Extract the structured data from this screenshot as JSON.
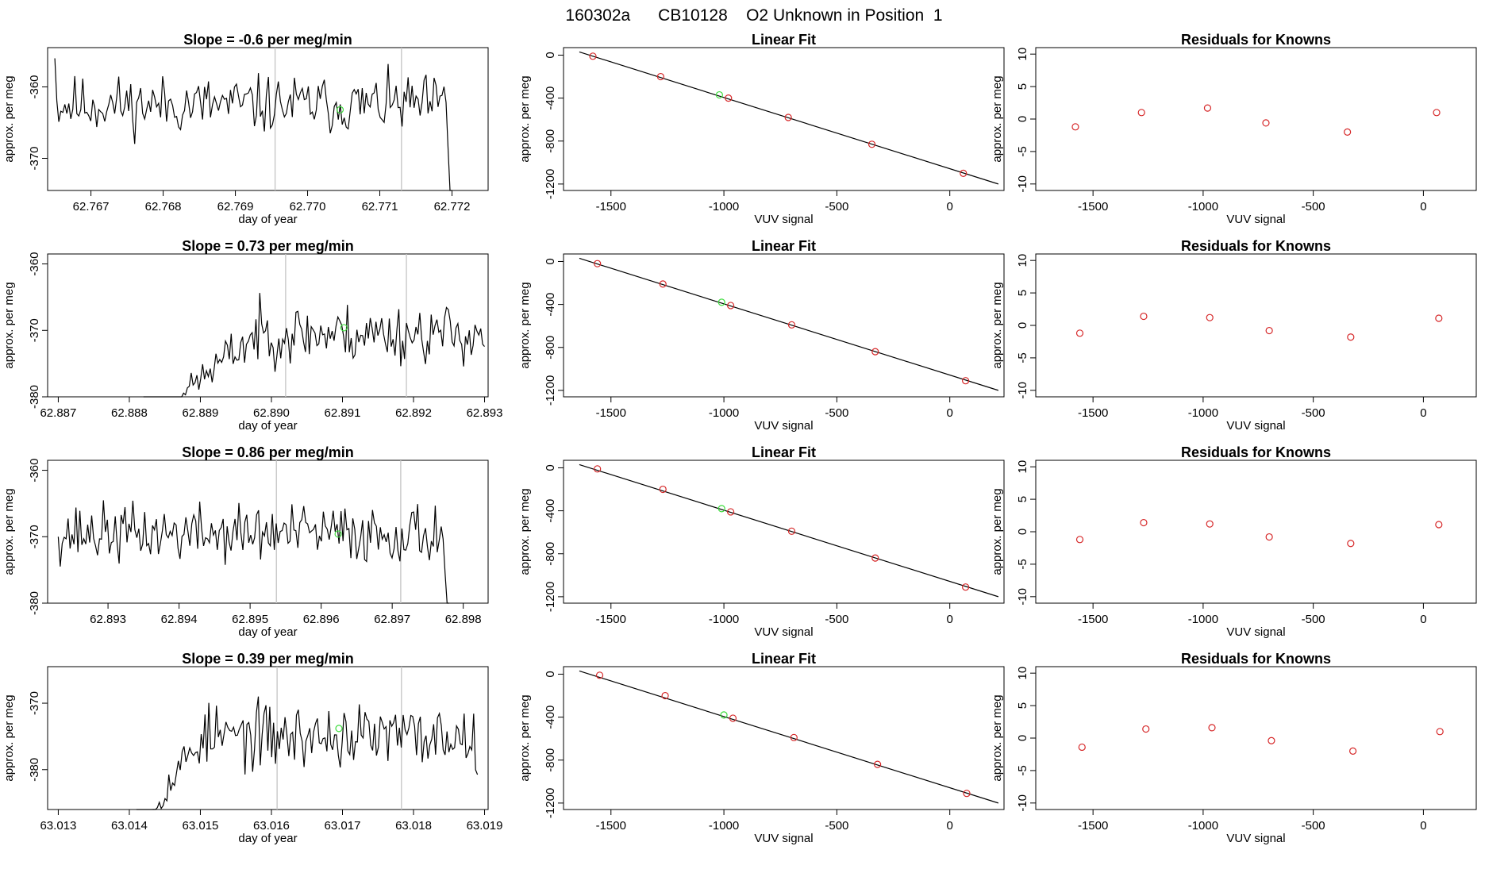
{
  "figure_title": "160302a      CB10128    O2 Unknown in Position  1",
  "colors": {
    "trace": "#000000",
    "known_point": "#d62728",
    "unknown_point": "#3ddc3d",
    "cycle_marker": "#c8c8c8",
    "fit_line": "#000000"
  },
  "labels": {
    "time_xlabel": "day of year",
    "time_ylabel": "approx. per meg",
    "fit_title": "Linear Fit",
    "fit_xlabel": "VUV signal",
    "fit_ylabel": "approx. per meg",
    "resid_title": "Residuals for Knowns",
    "resid_xlabel": "VUV signal",
    "resid_ylabel": "approx. per meg"
  },
  "chart_data": [
    {
      "type": "line",
      "row": 1,
      "panel": "time-series",
      "title": "Slope =  -0.6  per meg/min",
      "xlabel": "day of year",
      "ylabel": "approx. per meg",
      "xlim": [
        62.7664,
        62.7725
      ],
      "ylim": [
        -374.5,
        -354.5
      ],
      "xticks": [
        "62.767",
        "62.768",
        "62.769",
        "62.770",
        "62.771",
        "62.772"
      ],
      "yticks": [
        "-360",
        "-370"
      ],
      "trace": {
        "start": 62.7665,
        "end": 62.772,
        "n": 200,
        "base": -362.5,
        "amp": 2.0,
        "seed": 11,
        "start_value": -356.0,
        "end_drop_to": -376.0
      },
      "cycle_markers": [
        62.76955,
        62.7713
      ],
      "unknown_point": {
        "x": 62.77045,
        "y": -363.2
      }
    },
    {
      "type": "scatter",
      "row": 1,
      "panel": "linear-fit",
      "title": "Linear Fit",
      "xlabel": "VUV signal",
      "ylabel": "approx. per meg",
      "xlim": [
        -1710,
        240
      ],
      "ylim": [
        -1260,
        70
      ],
      "xticks": [
        "-1500",
        "-1000",
        "-500",
        "0"
      ],
      "yticks": [
        "0",
        "-400",
        "-800",
        "-1200"
      ],
      "fit_line": {
        "x": [
          -1640,
          215
        ],
        "y": [
          30,
          -1200
        ]
      },
      "knowns": [
        {
          "x": -1580,
          "y": -10
        },
        {
          "x": -1280,
          "y": -200
        },
        {
          "x": -980,
          "y": -400
        },
        {
          "x": -715,
          "y": -580
        },
        {
          "x": -345,
          "y": -830
        },
        {
          "x": 60,
          "y": -1100
        }
      ],
      "unknown": {
        "x": -1020,
        "y": -370
      }
    },
    {
      "type": "scatter",
      "row": 1,
      "panel": "residuals",
      "title": "Residuals for Knowns",
      "xlabel": "VUV signal",
      "ylabel": "approx. per meg",
      "xlim": [
        -1760,
        240
      ],
      "ylim": [
        -11,
        11
      ],
      "xticks": [
        "-1500",
        "-1000",
        "-500",
        "0"
      ],
      "yticks": [
        "10",
        "5",
        "0",
        "-5",
        "-10"
      ],
      "points": [
        {
          "x": -1580,
          "y": -1.2
        },
        {
          "x": -1280,
          "y": 1.0
        },
        {
          "x": -980,
          "y": 1.7
        },
        {
          "x": -715,
          "y": -0.6
        },
        {
          "x": -345,
          "y": -2.0
        },
        {
          "x": 60,
          "y": 1.0
        }
      ]
    },
    {
      "type": "line",
      "row": 2,
      "panel": "time-series",
      "title": "Slope =  0.73  per meg/min",
      "xlabel": "day of year",
      "ylabel": "approx. per meg",
      "xlim": [
        62.88685,
        62.89305
      ],
      "ylim": [
        -380,
        -358.5
      ],
      "xticks": [
        "62.887",
        "62.888",
        "62.889",
        "62.890",
        "62.891",
        "62.892",
        "62.893"
      ],
      "yticks": [
        "-360",
        "-370",
        "-380"
      ],
      "trace": {
        "start": 62.8882,
        "end": 62.893,
        "n": 180,
        "base": -370.5,
        "amp": 2.2,
        "seed": 23,
        "ramp_from": -384.0,
        "ramp_end": 62.8898
      },
      "cycle_markers": [
        62.8902,
        62.8919
      ],
      "unknown_point": {
        "x": 62.89102,
        "y": -369.6
      }
    },
    {
      "type": "scatter",
      "row": 2,
      "panel": "linear-fit",
      "title": "Linear Fit",
      "xlabel": "VUV signal",
      "ylabel": "approx. per meg",
      "xlim": [
        -1710,
        240
      ],
      "ylim": [
        -1260,
        70
      ],
      "xticks": [
        "-1500",
        "-1000",
        "-500",
        "0"
      ],
      "yticks": [
        "0",
        "-400",
        "-800",
        "-1200"
      ],
      "fit_line": {
        "x": [
          -1640,
          215
        ],
        "y": [
          30,
          -1200
        ]
      },
      "knowns": [
        {
          "x": -1560,
          "y": -20
        },
        {
          "x": -1270,
          "y": -210
        },
        {
          "x": -970,
          "y": -410
        },
        {
          "x": -700,
          "y": -590
        },
        {
          "x": -330,
          "y": -840
        },
        {
          "x": 70,
          "y": -1110
        }
      ],
      "unknown": {
        "x": -1010,
        "y": -380
      }
    },
    {
      "type": "scatter",
      "row": 2,
      "panel": "residuals",
      "title": "Residuals for Knowns",
      "xlabel": "VUV signal",
      "ylabel": "approx. per meg",
      "xlim": [
        -1760,
        240
      ],
      "ylim": [
        -11,
        11
      ],
      "xticks": [
        "-1500",
        "-1000",
        "-500",
        "0"
      ],
      "yticks": [
        "10",
        "5",
        "0",
        "-5",
        "-10"
      ],
      "points": [
        {
          "x": -1560,
          "y": -1.2
        },
        {
          "x": -1270,
          "y": 1.4
        },
        {
          "x": -970,
          "y": 1.2
        },
        {
          "x": -700,
          "y": -0.8
        },
        {
          "x": -330,
          "y": -1.8
        },
        {
          "x": 70,
          "y": 1.1
        }
      ]
    },
    {
      "type": "line",
      "row": 3,
      "panel": "time-series",
      "title": "Slope =  0.86  per meg/min",
      "xlabel": "day of year",
      "ylabel": "approx. per meg",
      "xlim": [
        62.89215,
        62.89835
      ],
      "ylim": [
        -380,
        -358.5
      ],
      "xticks": [
        "62.893",
        "62.894",
        "62.895",
        "62.896",
        "62.897",
        "62.898"
      ],
      "yticks": [
        "-360",
        "-370",
        "-380"
      ],
      "trace": {
        "start": 62.8923,
        "end": 62.8978,
        "n": 200,
        "base": -369.5,
        "amp": 2.2,
        "seed": 37,
        "start_value": -370.0,
        "end_drop_to": -384.0
      },
      "cycle_markers": [
        62.89537,
        62.89712
      ],
      "unknown_point": {
        "x": 62.89624,
        "y": -369.6
      }
    },
    {
      "type": "scatter",
      "row": 3,
      "panel": "linear-fit",
      "title": "Linear Fit",
      "xlabel": "VUV signal",
      "ylabel": "approx. per meg",
      "xlim": [
        -1710,
        240
      ],
      "ylim": [
        -1260,
        70
      ],
      "xticks": [
        "-1500",
        "-1000",
        "-500",
        "0"
      ],
      "yticks": [
        "0",
        "-400",
        "-800",
        "-1200"
      ],
      "fit_line": {
        "x": [
          -1640,
          215
        ],
        "y": [
          30,
          -1200
        ]
      },
      "knowns": [
        {
          "x": -1560,
          "y": -10
        },
        {
          "x": -1270,
          "y": -200
        },
        {
          "x": -970,
          "y": -410
        },
        {
          "x": -700,
          "y": -590
        },
        {
          "x": -330,
          "y": -840
        },
        {
          "x": 70,
          "y": -1110
        }
      ],
      "unknown": {
        "x": -1010,
        "y": -380
      }
    },
    {
      "type": "scatter",
      "row": 3,
      "panel": "residuals",
      "title": "Residuals for Knowns",
      "xlabel": "VUV signal",
      "ylabel": "approx. per meg",
      "xlim": [
        -1760,
        240
      ],
      "ylim": [
        -11,
        11
      ],
      "xticks": [
        "-1500",
        "-1000",
        "-500",
        "0"
      ],
      "yticks": [
        "10",
        "5",
        "0",
        "-5",
        "-10"
      ],
      "points": [
        {
          "x": -1560,
          "y": -1.2
        },
        {
          "x": -1270,
          "y": 1.4
        },
        {
          "x": -970,
          "y": 1.2
        },
        {
          "x": -700,
          "y": -0.8
        },
        {
          "x": -330,
          "y": -1.8
        },
        {
          "x": 70,
          "y": 1.1
        }
      ]
    },
    {
      "type": "line",
      "row": 4,
      "panel": "time-series",
      "title": "Slope =  0.39  per meg/min",
      "xlabel": "day of year",
      "ylabel": "approx. per meg",
      "xlim": [
        63.01285,
        63.01905
      ],
      "ylim": [
        -386,
        -364.5
      ],
      "xticks": [
        "63.013",
        "63.014",
        "63.015",
        "63.016",
        "63.017",
        "63.018",
        "63.019"
      ],
      "yticks": [
        "-370",
        "-380"
      ],
      "trace": {
        "start": 63.0141,
        "end": 63.0189,
        "n": 180,
        "base": -375.0,
        "amp": 2.4,
        "seed": 53,
        "ramp_from": -390.0,
        "ramp_end": 63.015
      },
      "cycle_markers": [
        63.01608,
        63.01783
      ],
      "unknown_point": {
        "x": 63.01695,
        "y": -373.8
      }
    },
    {
      "type": "scatter",
      "row": 4,
      "panel": "linear-fit",
      "title": "Linear Fit",
      "xlabel": "VUV signal",
      "ylabel": "approx. per meg",
      "xlim": [
        -1710,
        240
      ],
      "ylim": [
        -1260,
        70
      ],
      "xticks": [
        "-1500",
        "-1000",
        "-500",
        "0"
      ],
      "yticks": [
        "0",
        "-400",
        "-800",
        "-1200"
      ],
      "fit_line": {
        "x": [
          -1640,
          215
        ],
        "y": [
          30,
          -1200
        ]
      },
      "knowns": [
        {
          "x": -1550,
          "y": -10
        },
        {
          "x": -1260,
          "y": -200
        },
        {
          "x": -960,
          "y": -410
        },
        {
          "x": -690,
          "y": -590
        },
        {
          "x": -320,
          "y": -840
        },
        {
          "x": 75,
          "y": -1110
        }
      ],
      "unknown": {
        "x": -1000,
        "y": -380
      }
    },
    {
      "type": "scatter",
      "row": 4,
      "panel": "residuals",
      "title": "Residuals for Knowns",
      "xlabel": "VUV signal",
      "ylabel": "approx. per meg",
      "xlim": [
        -1760,
        240
      ],
      "ylim": [
        -11,
        11
      ],
      "xticks": [
        "-1500",
        "-1000",
        "-500",
        "0"
      ],
      "yticks": [
        "10",
        "5",
        "0",
        "-5",
        "-10"
      ],
      "points": [
        {
          "x": -1550,
          "y": -1.4
        },
        {
          "x": -1260,
          "y": 1.4
        },
        {
          "x": -960,
          "y": 1.6
        },
        {
          "x": -690,
          "y": -0.4
        },
        {
          "x": -320,
          "y": -2.0
        },
        {
          "x": 75,
          "y": 1.0
        }
      ]
    }
  ]
}
